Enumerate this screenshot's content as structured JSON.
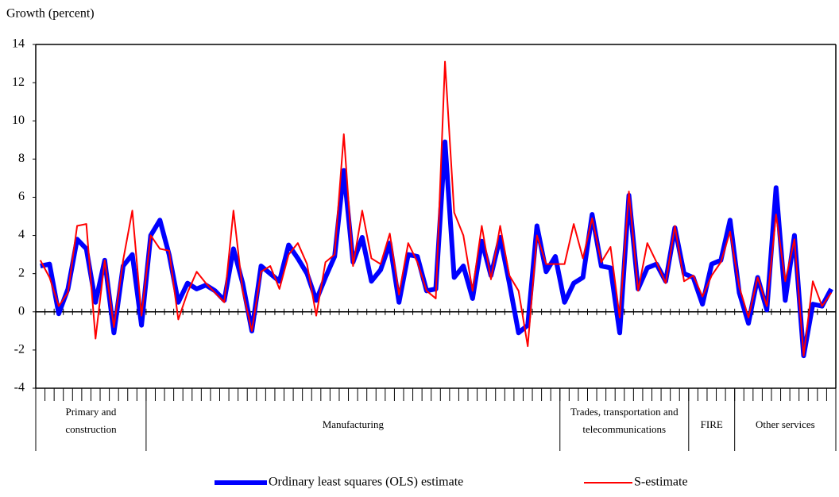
{
  "chart_data": {
    "type": "line",
    "ylabel": "Growth (percent)",
    "categories": [
      null,
      null,
      null,
      null,
      null,
      null,
      null,
      null,
      null,
      null,
      null,
      null,
      null,
      null,
      null,
      null,
      null,
      null,
      null,
      null,
      null,
      null,
      null,
      null,
      null,
      null,
      null,
      null,
      null,
      null,
      null,
      null,
      null,
      null,
      null,
      null,
      null,
      null,
      null,
      null,
      null,
      null,
      null,
      null,
      null,
      null,
      null,
      null,
      null,
      null,
      null,
      null,
      null,
      null,
      null,
      null,
      null,
      null,
      null,
      null,
      null,
      null,
      null,
      null,
      null,
      null,
      null,
      null,
      null,
      null,
      null,
      null,
      null,
      null,
      null,
      null,
      null,
      null,
      null,
      null,
      null,
      null,
      null,
      null,
      null,
      null,
      null
    ],
    "groups": [
      {
        "label": [
          "Primary and",
          "construction"
        ],
        "size": 12
      },
      {
        "label": [
          "Manufacturing"
        ],
        "size": 45
      },
      {
        "label": [
          "Trades, transportation and",
          "telecommunications"
        ],
        "size": 14
      },
      {
        "label": [
          "FIRE"
        ],
        "size": 5
      },
      {
        "label": [
          "Other services"
        ],
        "size": 11
      }
    ],
    "series": [
      {
        "name": "Ordinary least squares (OLS) estimate",
        "color": "#0000ff",
        "line_width": 6,
        "values": [
          2.4,
          2.5,
          -0.1,
          1.2,
          3.8,
          3.3,
          0.5,
          2.7,
          -1.1,
          2.4,
          3.0,
          -0.7,
          4.0,
          4.8,
          3.0,
          0.5,
          1.5,
          1.2,
          1.4,
          1.1,
          0.6,
          3.3,
          1.5,
          -1.0,
          2.4,
          2.0,
          1.6,
          3.5,
          2.8,
          2.0,
          0.6,
          1.8,
          2.9,
          7.4,
          2.6,
          3.9,
          1.6,
          2.2,
          3.6,
          0.5,
          3.0,
          2.9,
          1.1,
          1.2,
          8.9,
          1.8,
          2.4,
          0.7,
          3.7,
          1.9,
          3.9,
          1.5,
          -1.1,
          -0.7,
          4.5,
          2.1,
          2.9,
          0.5,
          1.5,
          1.8,
          5.1,
          2.4,
          2.3,
          -1.1,
          6.1,
          1.2,
          2.3,
          2.5,
          1.6,
          4.4,
          2.0,
          1.8,
          0.4,
          2.5,
          2.7,
          4.8,
          1.0,
          -0.6,
          1.8,
          0.1,
          6.5,
          0.6,
          4.0,
          -2.3,
          0.4,
          0.3,
          1.2
        ]
      },
      {
        "name": "S-estimate",
        "color": "#ff0000",
        "line_width": 2,
        "values": [
          2.7,
          1.8,
          0.3,
          1.0,
          4.5,
          4.6,
          -1.4,
          2.7,
          -0.8,
          2.7,
          5.3,
          -0.2,
          4.0,
          3.3,
          3.2,
          -0.4,
          1.0,
          2.1,
          1.5,
          1.0,
          0.5,
          5.3,
          1.1,
          -1.0,
          2.1,
          2.4,
          1.2,
          3.0,
          3.6,
          2.5,
          -0.2,
          2.6,
          3.0,
          9.3,
          2.4,
          5.3,
          2.8,
          2.5,
          4.1,
          0.9,
          3.6,
          2.6,
          1.1,
          0.7,
          13.1,
          5.2,
          4.0,
          1.1,
          4.5,
          1.7,
          4.5,
          1.9,
          1.1,
          -1.8,
          4.0,
          2.5,
          2.5,
          2.5,
          4.6,
          2.8,
          4.9,
          2.6,
          3.4,
          -0.3,
          6.3,
          1.1,
          3.6,
          2.6,
          1.5,
          4.5,
          1.6,
          1.9,
          0.8,
          1.9,
          2.6,
          4.2,
          1.3,
          -0.3,
          1.8,
          0.3,
          5.1,
          1.6,
          3.8,
          -2.3,
          1.6,
          0.3,
          1.0
        ]
      }
    ],
    "ylim": [
      -4,
      14
    ],
    "yticks": [
      -4,
      -2,
      0,
      2,
      4,
      6,
      8,
      10,
      12,
      14
    ],
    "legend": "bottom"
  }
}
